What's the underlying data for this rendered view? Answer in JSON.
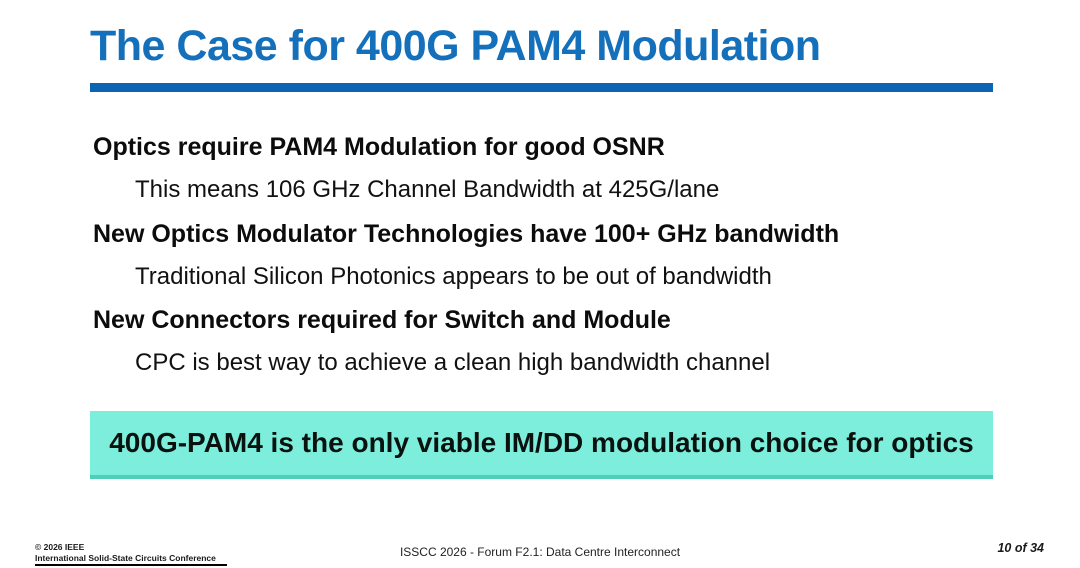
{
  "slide": {
    "title": "The Case for 400G PAM4 Modulation",
    "bullets": [
      {
        "heading": "Optics require PAM4 Modulation for good OSNR",
        "sub": "This means 106 GHz Channel Bandwidth at 425G/lane"
      },
      {
        "heading": "New Optics Modulator Technologies have 100+ GHz bandwidth",
        "sub": "Traditional Silicon Photonics appears to be out of bandwidth"
      },
      {
        "heading": "New Connectors required for Switch and Module",
        "sub": "CPC is best way to achieve a clean high bandwidth channel"
      }
    ],
    "highlight": "400G-PAM4 is the only viable IM/DD modulation choice for optics",
    "footer": {
      "left_line1": "© 2026 IEEE",
      "left_line2": "International Solid-State Circuits Conference",
      "center": "ISSCC 2026 - Forum F2.1: Data Centre Interconnect",
      "right": "10 of 34"
    },
    "colors": {
      "title_blue": "#1470ba",
      "rule_blue": "#0d64b2",
      "highlight_bg": "#7ceedb",
      "highlight_edge": "#4ecfb9",
      "body_text": "#111111"
    }
  }
}
